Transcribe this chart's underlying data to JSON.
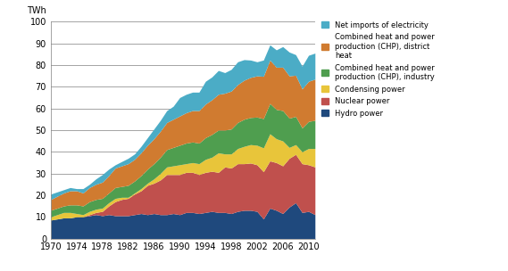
{
  "title": "",
  "ylabel": "TWh",
  "xlim": [
    0,
    41
  ],
  "ylim": [
    0,
    100
  ],
  "yticks": [
    0,
    10,
    20,
    30,
    40,
    50,
    60,
    70,
    80,
    90,
    100
  ],
  "xtick_positions": [
    0,
    4,
    8,
    12,
    16,
    20,
    24,
    28,
    32,
    36,
    40
  ],
  "xtick_labels": [
    "1970",
    "1974",
    "1978",
    "1982",
    "1986",
    "1990",
    "1994",
    "1998",
    "2002",
    "2006",
    "2010"
  ],
  "years": [
    1970,
    1971,
    1972,
    1973,
    1974,
    1975,
    1976,
    1977,
    1978,
    1979,
    1980,
    1981,
    1982,
    1983,
    1984,
    1985,
    1986,
    1987,
    1988,
    1989,
    1990,
    1991,
    1992,
    1993,
    1994,
    1995,
    1996,
    1997,
    1998,
    1999,
    2000,
    2001,
    2002,
    2003,
    2004,
    2005,
    2006,
    2007,
    2008,
    2009,
    2010,
    2011
  ],
  "hydro": [
    8.5,
    9.0,
    9.5,
    9.5,
    10.0,
    10.0,
    10.5,
    11.0,
    10.5,
    11.0,
    10.5,
    10.5,
    10.5,
    11.0,
    11.5,
    11.0,
    11.5,
    11.0,
    11.0,
    11.5,
    11.0,
    12.0,
    12.0,
    11.5,
    12.0,
    12.5,
    12.0,
    12.0,
    11.5,
    12.5,
    13.0,
    13.0,
    12.5,
    9.0,
    14.0,
    13.0,
    11.5,
    14.5,
    16.5,
    12.0,
    12.5,
    11.0
  ],
  "nuclear": [
    0.0,
    0.0,
    0.0,
    0.0,
    0.0,
    0.0,
    0.5,
    1.0,
    2.0,
    4.0,
    6.5,
    7.5,
    8.0,
    9.5,
    10.5,
    13.5,
    14.0,
    16.0,
    18.5,
    18.0,
    18.5,
    18.5,
    18.5,
    18.0,
    18.5,
    18.5,
    18.5,
    21.0,
    21.0,
    22.0,
    21.5,
    21.8,
    21.5,
    21.8,
    21.8,
    22.0,
    22.0,
    22.5,
    22.3,
    22.5,
    21.5,
    22.0
  ],
  "condensing": [
    1.5,
    2.0,
    2.5,
    2.5,
    1.5,
    1.0,
    1.5,
    1.5,
    1.5,
    1.5,
    1.5,
    1.0,
    0.5,
    0.5,
    1.0,
    1.0,
    2.0,
    3.0,
    3.5,
    4.0,
    4.5,
    4.0,
    4.5,
    5.0,
    6.0,
    6.5,
    9.0,
    6.0,
    6.5,
    7.0,
    8.0,
    8.5,
    9.0,
    11.0,
    12.5,
    11.0,
    11.5,
    5.0,
    4.5,
    5.5,
    7.5,
    8.5
  ],
  "chp_industry": [
    3.0,
    3.0,
    3.0,
    3.5,
    4.0,
    4.0,
    4.5,
    4.5,
    4.5,
    4.5,
    5.0,
    5.0,
    5.5,
    5.5,
    6.0,
    6.5,
    7.0,
    7.5,
    8.0,
    8.5,
    9.0,
    9.5,
    9.5,
    9.5,
    10.0,
    10.5,
    10.5,
    11.0,
    11.5,
    12.0,
    12.5,
    12.5,
    13.0,
    13.5,
    14.0,
    13.5,
    14.0,
    13.5,
    13.0,
    11.0,
    12.5,
    13.0
  ],
  "chp_district": [
    5.0,
    5.5,
    6.0,
    6.5,
    6.5,
    6.0,
    6.5,
    7.0,
    7.5,
    8.0,
    9.0,
    9.5,
    10.0,
    10.0,
    10.5,
    11.0,
    11.5,
    12.0,
    12.5,
    13.0,
    13.5,
    14.0,
    14.5,
    15.0,
    15.5,
    16.0,
    16.5,
    17.0,
    17.5,
    17.5,
    18.0,
    18.5,
    19.0,
    19.5,
    20.0,
    19.5,
    20.0,
    19.5,
    19.0,
    18.0,
    18.5,
    19.0
  ],
  "net_imports": [
    2.5,
    2.0,
    1.5,
    1.5,
    1.0,
    2.0,
    1.5,
    2.5,
    3.5,
    3.0,
    1.5,
    2.0,
    2.5,
    2.5,
    3.0,
    3.5,
    4.5,
    5.0,
    5.5,
    6.0,
    8.5,
    8.5,
    8.5,
    8.5,
    10.5,
    10.5,
    11.0,
    9.5,
    10.0,
    10.5,
    9.5,
    8.0,
    6.5,
    7.5,
    7.0,
    8.0,
    9.5,
    11.0,
    9.5,
    10.5,
    12.0,
    12.0
  ],
  "colors": {
    "hydro": "#1f497d",
    "nuclear": "#c0504d",
    "condensing": "#e8c53a",
    "chp_industry": "#4f9e4f",
    "chp_district": "#d07b30",
    "net_imports": "#4bacc6"
  },
  "legend_labels": [
    "Net imports of electricity",
    "Combined heat and power\nproduction (CHP), district\nheat",
    "Combined heat and power\nproduction (CHP), industry",
    "Condensing power",
    "Nuclear power",
    "Hydro power"
  ],
  "background_color": "#ffffff"
}
